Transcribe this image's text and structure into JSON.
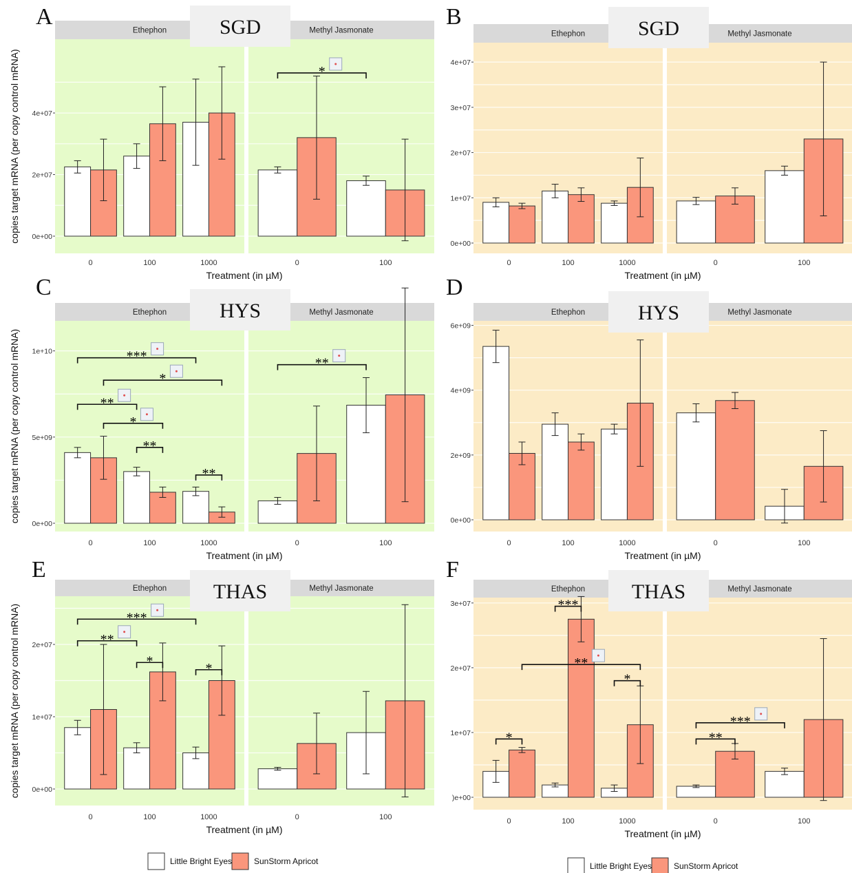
{
  "figure": {
    "xlabel": "Treatment (in µM)",
    "ylabel": "copies target mRNA (per copy control mRNA)",
    "panel_letters": [
      "A",
      "B",
      "C",
      "D",
      "E",
      "F"
    ],
    "facets": [
      "Ethephon",
      "Methyl Jasmonate"
    ],
    "legend": [
      {
        "label": "Little Bright Eyes",
        "color": "#ffffff"
      },
      {
        "label": "SunStorm Apricot",
        "color": "#fa967c"
      }
    ],
    "colors": {
      "green_bg": "#e6fbca",
      "orange_bg": "#fcebc6",
      "strip": "#d9d9d9",
      "bar_lbe": "#ffffff",
      "bar_ssa": "#fa967c"
    }
  },
  "chart_data": [
    {
      "panel": "A",
      "gene": "SGD",
      "type": "bar",
      "ylim": [
        0,
        55000000.0
      ],
      "yticks": [
        0,
        20000000.0,
        40000000.0
      ],
      "ytick_labels": [
        "0e+00",
        "2e+07",
        "4e+07"
      ],
      "facets": [
        {
          "name": "Ethephon",
          "categories": [
            "0",
            "100",
            "1000"
          ],
          "series": [
            {
              "name": "Little Bright Eyes",
              "values": [
                22500000.0,
                26000000.0,
                37000000.0
              ],
              "errors": [
                2000000.0,
                4000000.0,
                14000000.0
              ]
            },
            {
              "name": "SunStorm Apricot",
              "values": [
                21500000.0,
                36500000.0,
                40000000.0
              ],
              "errors": [
                10000000.0,
                12000000.0,
                15000000.0
              ]
            }
          ],
          "sig": []
        },
        {
          "name": "Methyl Jasmonate",
          "categories": [
            "0",
            "100"
          ],
          "series": [
            {
              "name": "Little Bright Eyes",
              "values": [
                21500000.0,
                18000000.0
              ],
              "errors": [
                1000000.0,
                1500000.0
              ]
            },
            {
              "name": "SunStorm Apricot",
              "values": [
                32000000.0,
                15000000.0
              ],
              "errors": [
                20000000.0,
                16500000.0
              ]
            }
          ],
          "sig": [
            {
              "from": [
                0,
                0
              ],
              "to": [
                1,
                0
              ],
              "y": 53000000.0,
              "label": "*",
              "box": true
            }
          ]
        }
      ]
    },
    {
      "panel": "B",
      "gene": "SGD",
      "type": "bar",
      "ylim": [
        0,
        42000000.0
      ],
      "yticks": [
        0,
        10000000.0,
        20000000.0,
        30000000.0,
        40000000.0
      ],
      "ytick_labels": [
        "0e+00",
        "1e+07",
        "2e+07",
        "3e+07",
        "4e+07"
      ],
      "facets": [
        {
          "name": "Ethephon",
          "categories": [
            "0",
            "100",
            "1000"
          ],
          "series": [
            {
              "name": "Little Bright Eyes",
              "values": [
                9000000.0,
                11500000.0,
                8800000.0
              ],
              "errors": [
                1000000.0,
                1500000.0,
                500000.0
              ]
            },
            {
              "name": "SunStorm Apricot",
              "values": [
                8200000.0,
                10700000.0,
                12300000.0
              ],
              "errors": [
                600000.0,
                1500000.0,
                6500000.0
              ]
            }
          ],
          "sig": []
        },
        {
          "name": "Methyl Jasmonate",
          "categories": [
            "0",
            "100"
          ],
          "series": [
            {
              "name": "Little Bright Eyes",
              "values": [
                9300000.0,
                16000000.0
              ],
              "errors": [
                800000.0,
                1000000.0
              ]
            },
            {
              "name": "SunStorm Apricot",
              "values": [
                10400000.0,
                23000000.0
              ],
              "errors": [
                1800000.0,
                17000000.0
              ]
            }
          ],
          "sig": []
        }
      ]
    },
    {
      "panel": "C",
      "gene": "HYS",
      "type": "bar",
      "ylim": [
        0,
        14500000000.0
      ],
      "yticks": [
        0,
        5000000000.0,
        10000000000.0
      ],
      "ytick_labels": [
        "0e+00",
        "5e+09",
        "1e+10"
      ],
      "facets": [
        {
          "name": "Ethephon",
          "categories": [
            "0",
            "100",
            "1000"
          ],
          "series": [
            {
              "name": "Little Bright Eyes",
              "values": [
                4100000000.0,
                3000000000.0,
                1850000000.0
              ],
              "errors": [
                300000000.0,
                250000000.0,
                250000000.0
              ]
            },
            {
              "name": "SunStorm Apricot",
              "values": [
                3800000000.0,
                1800000000.0,
                650000000.0
              ],
              "errors": [
                1250000000.0,
                300000000.0,
                300000000.0
              ]
            }
          ],
          "sig": [
            {
              "from": [
                0,
                0
              ],
              "to": [
                2,
                0
              ],
              "y": 9600000000.0,
              "label": "***",
              "box": true
            },
            {
              "from": [
                0,
                1
              ],
              "to": [
                2,
                1
              ],
              "y": 8300000000.0,
              "label": "*",
              "box": true
            },
            {
              "from": [
                0,
                0
              ],
              "to": [
                1,
                0
              ],
              "y": 6900000000.0,
              "label": "**",
              "box": true
            },
            {
              "from": [
                0,
                1
              ],
              "to": [
                1,
                1
              ],
              "y": 5800000000.0,
              "label": "*",
              "box": true
            },
            {
              "from": [
                1,
                0
              ],
              "to": [
                1,
                1
              ],
              "y": 4400000000.0,
              "label": "**",
              "box": false
            },
            {
              "from": [
                2,
                0
              ],
              "to": [
                2,
                1
              ],
              "y": 2800000000.0,
              "label": "**",
              "box": false
            }
          ]
        },
        {
          "name": "Methyl Jasmonate",
          "categories": [
            "0",
            "100"
          ],
          "series": [
            {
              "name": "Little Bright Eyes",
              "values": [
                1300000000.0,
                6850000000.0
              ],
              "errors": [
                200000000.0,
                1600000000.0
              ]
            },
            {
              "name": "SunStorm Apricot",
              "values": [
                4050000000.0,
                7450000000.0
              ],
              "errors": [
                2750000000.0,
                6200000000.0
              ]
            }
          ],
          "sig": [
            {
              "from": [
                0,
                0
              ],
              "to": [
                1,
                0
              ],
              "y": 9200000000.0,
              "label": "**",
              "box": true
            }
          ]
        }
      ]
    },
    {
      "panel": "D",
      "gene": "HYS",
      "type": "bar",
      "ylim": [
        0,
        6500000000.0
      ],
      "yticks": [
        0,
        2000000000.0,
        4000000000.0,
        6000000000.0
      ],
      "ytick_labels": [
        "0e+00",
        "2e+09",
        "4e+09",
        "6e+09"
      ],
      "facets": [
        {
          "name": "Ethephon",
          "categories": [
            "0",
            "100",
            "1000"
          ],
          "series": [
            {
              "name": "Little Bright Eyes",
              "values": [
                5350000000.0,
                2950000000.0,
                2800000000.0
              ],
              "errors": [
                500000000.0,
                350000000.0,
                150000000.0
              ]
            },
            {
              "name": "SunStorm Apricot",
              "values": [
                2050000000.0,
                2400000000.0,
                3600000000.0
              ],
              "errors": [
                350000000.0,
                250000000.0,
                1950000000.0
              ]
            }
          ],
          "sig": []
        },
        {
          "name": "Methyl Jasmonate",
          "categories": [
            "0",
            "100"
          ],
          "series": [
            {
              "name": "Little Bright Eyes",
              "values": [
                3300000000.0,
                420000000.0
              ],
              "errors": [
                280000000.0,
                520000000.0
              ]
            },
            {
              "name": "SunStorm Apricot",
              "values": [
                3680000000.0,
                1650000000.0
              ],
              "errors": [
                250000000.0,
                1100000000.0
              ]
            }
          ],
          "sig": []
        }
      ]
    },
    {
      "panel": "E",
      "gene": "THAS",
      "type": "bar",
      "ylim": [
        0,
        26000000.0
      ],
      "yticks": [
        0,
        10000000.0,
        20000000.0
      ],
      "ytick_labels": [
        "0e+00",
        "1e+07",
        "2e+07"
      ],
      "facets": [
        {
          "name": "Ethephon",
          "categories": [
            "0",
            "100",
            "1000"
          ],
          "series": [
            {
              "name": "Little Bright Eyes",
              "values": [
                8500000.0,
                5700000.0,
                5000000.0
              ],
              "errors": [
                1000000.0,
                700000.0,
                800000.0
              ]
            },
            {
              "name": "SunStorm Apricot",
              "values": [
                11000000.0,
                16200000.0,
                15000000.0
              ],
              "errors": [
                9000000.0,
                4000000.0,
                4800000.0
              ]
            }
          ],
          "sig": [
            {
              "from": [
                0,
                0
              ],
              "to": [
                2,
                0
              ],
              "y": 23500000.0,
              "label": "***",
              "box": true
            },
            {
              "from": [
                0,
                0
              ],
              "to": [
                1,
                0
              ],
              "y": 20500000.0,
              "label": "**",
              "box": true
            },
            {
              "from": [
                1,
                0
              ],
              "to": [
                1,
                1
              ],
              "y": 17500000.0,
              "label": "*",
              "box": false
            },
            {
              "from": [
                2,
                0
              ],
              "to": [
                2,
                1
              ],
              "y": 16500000.0,
              "label": "*",
              "box": false
            }
          ]
        },
        {
          "name": "Methyl Jasmonate",
          "categories": [
            "0",
            "100"
          ],
          "series": [
            {
              "name": "Little Bright Eyes",
              "values": [
                2800000.0,
                7800000.0
              ],
              "errors": [
                200000.0,
                5700000.0
              ]
            },
            {
              "name": "SunStorm Apricot",
              "values": [
                6300000.0,
                12200000.0
              ],
              "errors": [
                4200000.0,
                13300000.0
              ]
            }
          ],
          "sig": []
        }
      ]
    },
    {
      "panel": "F",
      "gene": "THAS",
      "type": "bar",
      "ylim": [
        0,
        32000000.0
      ],
      "yticks": [
        0,
        10000000.0,
        20000000.0,
        30000000.0
      ],
      "ytick_labels": [
        ")e+00",
        "1e+07",
        "2e+07",
        "3e+07"
      ],
      "facets": [
        {
          "name": "Ethephon",
          "categories": [
            "0",
            "100",
            "1000"
          ],
          "series": [
            {
              "name": "Little Bright Eyes",
              "values": [
                4000000.0,
                1900000.0,
                1400000.0
              ],
              "errors": [
                1700000.0,
                300000.0,
                500000.0
              ]
            },
            {
              "name": "SunStorm Apricot",
              "values": [
                7300000.0,
                27500000.0,
                11200000.0
              ],
              "errors": [
                400000.0,
                3500000.0,
                6000000.0
              ]
            }
          ],
          "sig": [
            {
              "from": [
                0,
                0
              ],
              "to": [
                0,
                1
              ],
              "y": 9000000.0,
              "label": "*",
              "box": false
            },
            {
              "from": [
                1,
                0
              ],
              "to": [
                1,
                1
              ],
              "y": 29500000.0,
              "label": "***",
              "box": false
            },
            {
              "from": [
                0,
                1
              ],
              "to": [
                2,
                1
              ],
              "y": 20500000.0,
              "label": "**",
              "box": true
            },
            {
              "from": [
                2,
                0
              ],
              "to": [
                2,
                1
              ],
              "y": 18000000.0,
              "label": "*",
              "box": false
            }
          ]
        },
        {
          "name": "Methyl Jasmonate",
          "categories": [
            "0",
            "100"
          ],
          "series": [
            {
              "name": "Little Bright Eyes",
              "values": [
                1700000.0,
                4000000.0
              ],
              "errors": [
                200000.0,
                500000.0
              ]
            },
            {
              "name": "SunStorm Apricot",
              "values": [
                7100000.0,
                12000000.0
              ],
              "errors": [
                1200000.0,
                12500000.0
              ]
            }
          ],
          "sig": [
            {
              "from": [
                0,
                0
              ],
              "to": [
                1,
                0
              ],
              "y": 11500000.0,
              "label": "***",
              "box": true
            },
            {
              "from": [
                0,
                0
              ],
              "to": [
                0,
                1
              ],
              "y": 9000000.0,
              "label": "**",
              "box": false
            }
          ]
        }
      ]
    }
  ]
}
